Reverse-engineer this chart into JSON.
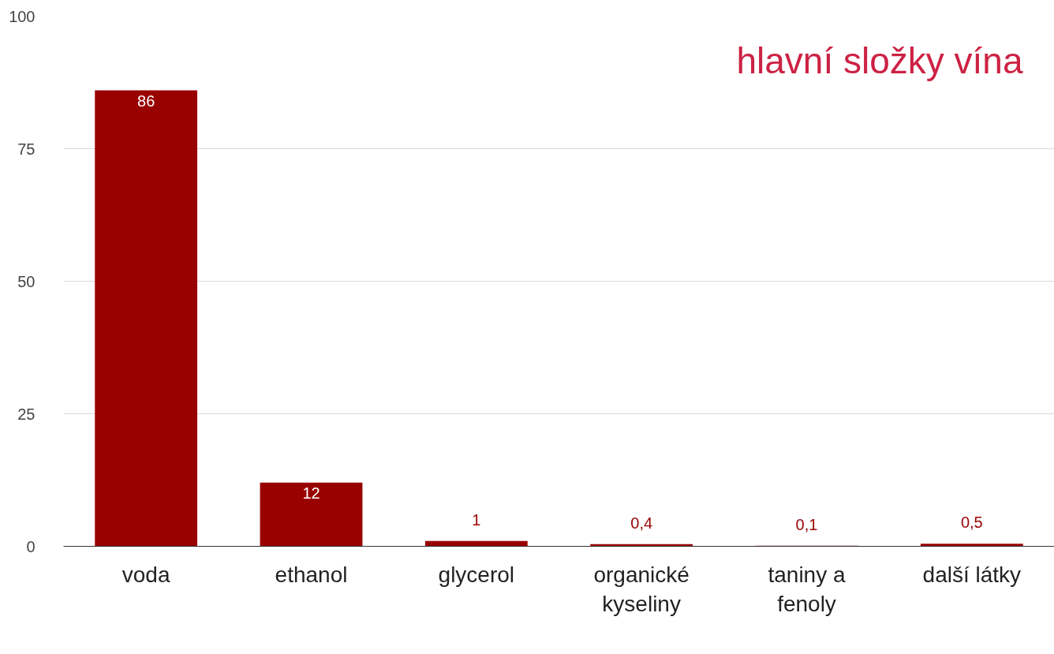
{
  "chart_data": {
    "type": "bar",
    "title": "hlavní složky vína",
    "categories": [
      "voda",
      "ethanol",
      "glycerol",
      "organické kyseliny",
      "taniny a fenoly",
      "další látky"
    ],
    "values": [
      86,
      12,
      1,
      0.4,
      0.1,
      0.5
    ],
    "value_labels": [
      "86",
      "12",
      "1",
      "0,4",
      "0,1",
      "0,5"
    ],
    "color": "#990000",
    "ylim": [
      0,
      100
    ],
    "yticks": [
      0,
      25,
      50,
      75,
      100
    ],
    "grid": "y"
  }
}
